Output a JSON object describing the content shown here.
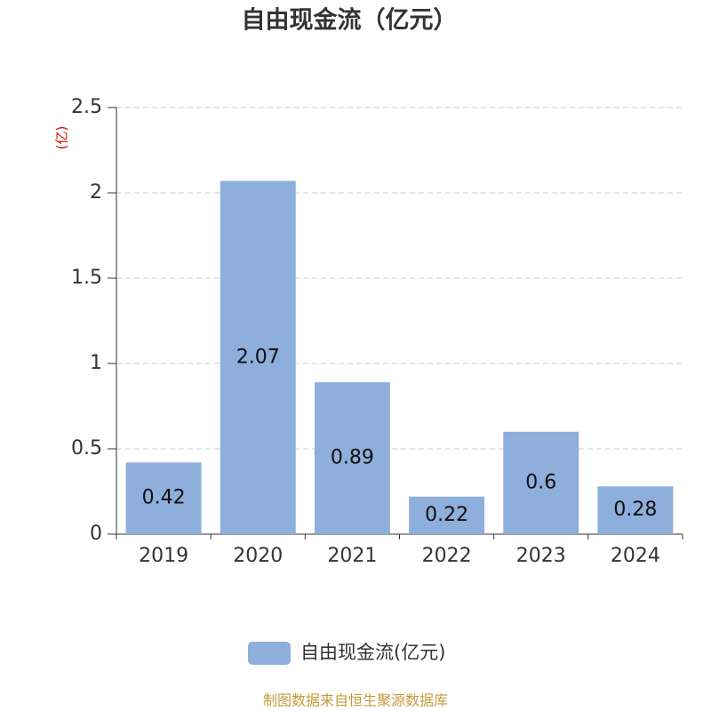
{
  "chart_data": {
    "type": "bar",
    "title": "自由现金流（亿元）",
    "y_axis_label": "(亿)",
    "categories": [
      "2019",
      "2020",
      "2021",
      "2022",
      "2023",
      "2024"
    ],
    "series": [
      {
        "name": "自由现金流(亿元)",
        "color": "#8eaedb",
        "values": [
          0.42,
          2.07,
          0.89,
          0.22,
          0.6,
          0.28
        ]
      }
    ],
    "ylim": [
      0,
      2.5
    ],
    "yticks": [
      0,
      0.5,
      1,
      1.5,
      2,
      2.5
    ],
    "grid": true,
    "source": "制图数据来自恒生聚源数据库"
  }
}
